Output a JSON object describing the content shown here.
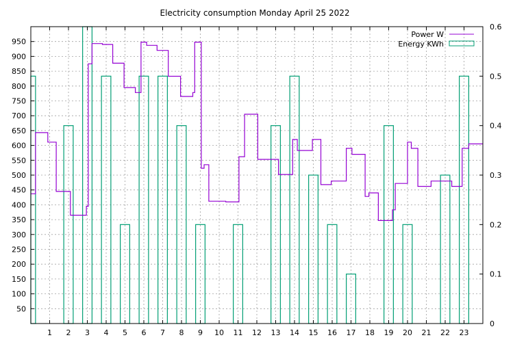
{
  "chart_data": {
    "type": "bar+line",
    "title": "Electricity consumption Monday April 25 2022",
    "x": {
      "range": [
        0,
        24
      ],
      "ticks": [
        1,
        2,
        3,
        4,
        5,
        6,
        7,
        8,
        9,
        10,
        11,
        12,
        13,
        14,
        15,
        16,
        17,
        18,
        19,
        20,
        21,
        22,
        23
      ],
      "tick_labels": [
        "1",
        "2",
        "3",
        "4",
        "5",
        "6",
        "7",
        "8",
        "9",
        "10",
        "11",
        "12",
        "13",
        "14",
        "15",
        "16",
        "17",
        "18",
        "19",
        "20",
        "21",
        "22",
        "23"
      ]
    },
    "y_left": {
      "range": [
        0,
        1000
      ],
      "ticks": [
        50,
        100,
        150,
        200,
        250,
        300,
        350,
        400,
        450,
        500,
        550,
        600,
        650,
        700,
        750,
        800,
        850,
        900,
        950
      ],
      "tick_labels": [
        "50",
        "100",
        "150",
        "200",
        "250",
        "300",
        "350",
        "400",
        "450",
        "500",
        "550",
        "600",
        "650",
        "700",
        "750",
        "800",
        "850",
        "900",
        "950"
      ]
    },
    "y_right": {
      "range": [
        0,
        0.6
      ],
      "ticks": [
        0,
        0.1,
        0.2,
        0.3,
        0.4,
        0.5,
        0.6
      ],
      "tick_labels": [
        "0",
        "0.1",
        "0.2",
        "0.3",
        "0.4",
        "0.5",
        "0.6"
      ]
    },
    "grid": true,
    "legend_position": "top-right",
    "series": [
      {
        "name": "Power W",
        "kind": "step-line",
        "axis": "left",
        "color": "#9400d3",
        "points": [
          [
            0,
            437
          ],
          [
            0.25,
            643
          ],
          [
            0.9,
            611
          ],
          [
            1.35,
            445
          ],
          [
            2.1,
            365
          ],
          [
            2.8,
            365
          ],
          [
            2.95,
            395
          ],
          [
            3.05,
            875
          ],
          [
            3.25,
            943
          ],
          [
            3.8,
            940
          ],
          [
            4.35,
            877
          ],
          [
            4.95,
            795
          ],
          [
            5.55,
            778
          ],
          [
            5.85,
            948
          ],
          [
            6.15,
            937
          ],
          [
            6.7,
            920
          ],
          [
            7.3,
            833
          ],
          [
            7.95,
            765
          ],
          [
            8.6,
            778
          ],
          [
            8.7,
            948
          ],
          [
            9.05,
            523
          ],
          [
            9.2,
            535
          ],
          [
            9.45,
            412
          ],
          [
            10.35,
            410
          ],
          [
            11.05,
            562
          ],
          [
            11.35,
            705
          ],
          [
            12.05,
            553
          ],
          [
            13.15,
            502
          ],
          [
            13.9,
            620
          ],
          [
            14.15,
            583
          ],
          [
            14.95,
            620
          ],
          [
            15.4,
            468
          ],
          [
            15.95,
            480
          ],
          [
            16.75,
            590
          ],
          [
            17.05,
            570
          ],
          [
            17.75,
            428
          ],
          [
            17.95,
            440
          ],
          [
            18.45,
            347
          ],
          [
            19.2,
            383
          ],
          [
            19.35,
            472
          ],
          [
            20.0,
            611
          ],
          [
            20.2,
            590
          ],
          [
            20.55,
            462
          ],
          [
            21.25,
            480
          ],
          [
            22.35,
            462
          ],
          [
            22.9,
            590
          ],
          [
            23.25,
            605
          ],
          [
            24,
            605
          ]
        ]
      },
      {
        "name": "Energy KWh",
        "kind": "impulse-bar",
        "axis": "right",
        "color": "#009e73",
        "bars": [
          [
            0,
            0.5
          ],
          [
            2,
            0.4
          ],
          [
            3,
            0.6
          ],
          [
            4,
            0.5
          ],
          [
            5,
            0.2
          ],
          [
            6,
            0.5
          ],
          [
            7,
            0.5
          ],
          [
            8,
            0.4
          ],
          [
            9,
            0.2
          ],
          [
            11,
            0.2
          ],
          [
            13,
            0.4
          ],
          [
            14,
            0.5
          ],
          [
            15,
            0.3
          ],
          [
            16,
            0.2
          ],
          [
            17,
            0.1
          ],
          [
            19,
            0.4
          ],
          [
            20,
            0.2
          ],
          [
            22,
            0.3
          ],
          [
            23,
            0.5
          ]
        ]
      }
    ]
  }
}
